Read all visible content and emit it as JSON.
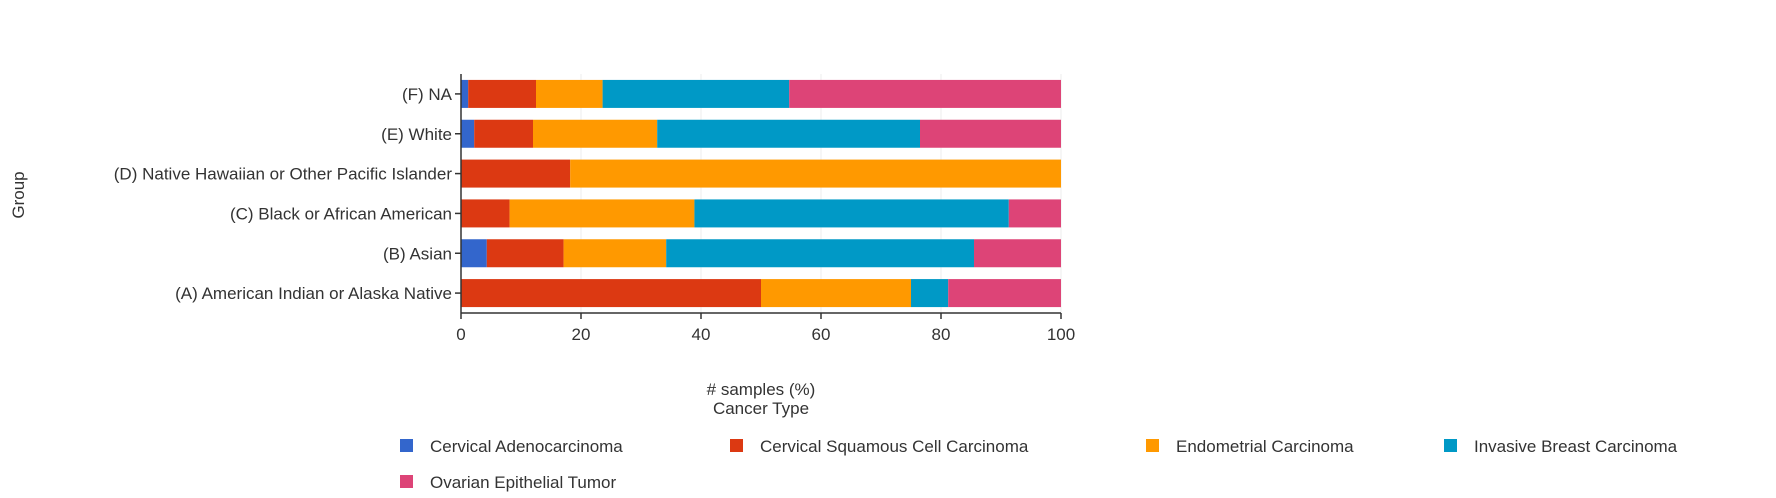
{
  "chart_data": {
    "type": "bar",
    "orientation": "horizontal",
    "stacked": true,
    "categories": [
      "(A) American Indian or Alaska Native",
      "(B) Asian",
      "(C) Black or African American",
      "(D) Native Hawaiian or Other Pacific Islander",
      "(E) White",
      "(F) NA"
    ],
    "series": [
      {
        "name": "Cervical Adenocarcinoma",
        "color": "#3366cc",
        "values": [
          0,
          4.3,
          0,
          0,
          2.2,
          1.2
        ]
      },
      {
        "name": "Cervical Squamous Cell Carcinoma",
        "color": "#dc3912",
        "values": [
          50.0,
          12.8,
          8.1,
          18.2,
          9.8,
          11.3
        ]
      },
      {
        "name": "Endometrial Carcinoma",
        "color": "#ff9900",
        "values": [
          25.0,
          17.1,
          30.8,
          81.8,
          20.7,
          11.1
        ]
      },
      {
        "name": "Invasive Breast Carcinoma",
        "color": "#0099c6",
        "values": [
          6.2,
          51.3,
          52.4,
          0,
          43.8,
          31.1
        ]
      },
      {
        "name": "Ovarian Epithelial Tumor",
        "color": "#dd4477",
        "values": [
          18.8,
          14.5,
          8.7,
          0,
          23.5,
          45.3
        ]
      }
    ],
    "xlabel": "# samples (%)",
    "ylabel": "Group",
    "legend_title": "Cancer Type",
    "xlim": [
      0,
      100
    ],
    "xticks": [
      "0",
      "20",
      "40",
      "60",
      "80",
      "100"
    ],
    "grid": true,
    "legend_position": "bottom"
  }
}
